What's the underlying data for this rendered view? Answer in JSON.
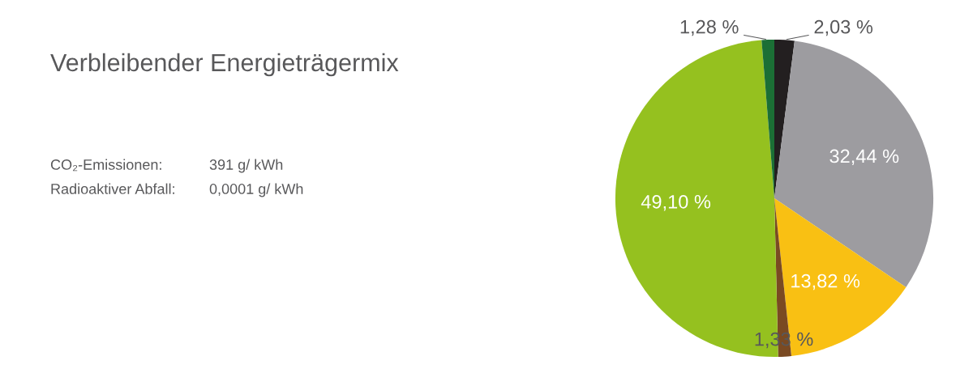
{
  "chart_data": {
    "type": "pie",
    "title": "Verbleibender Energieträgermix",
    "categories": [
      null,
      null,
      null,
      null,
      null,
      null
    ],
    "values": [
      2.03,
      32.44,
      13.82,
      1.33,
      49.1,
      1.28
    ],
    "colors": [
      "#231f20",
      "#9d9ca0",
      "#f9c013",
      "#7a4a22",
      "#95c11f",
      "#1b6f35"
    ],
    "value_labels": [
      "2,03 %",
      "32,44 %",
      "13,82 %",
      "1,33 %",
      "49,10 %",
      "1,28 %"
    ],
    "annotations": [
      "CO₂-Emissionen:",
      "391 g/ kWh",
      "Radioaktiver Abfall:",
      "0,0001 g/ kWh"
    ],
    "legend": false
  }
}
